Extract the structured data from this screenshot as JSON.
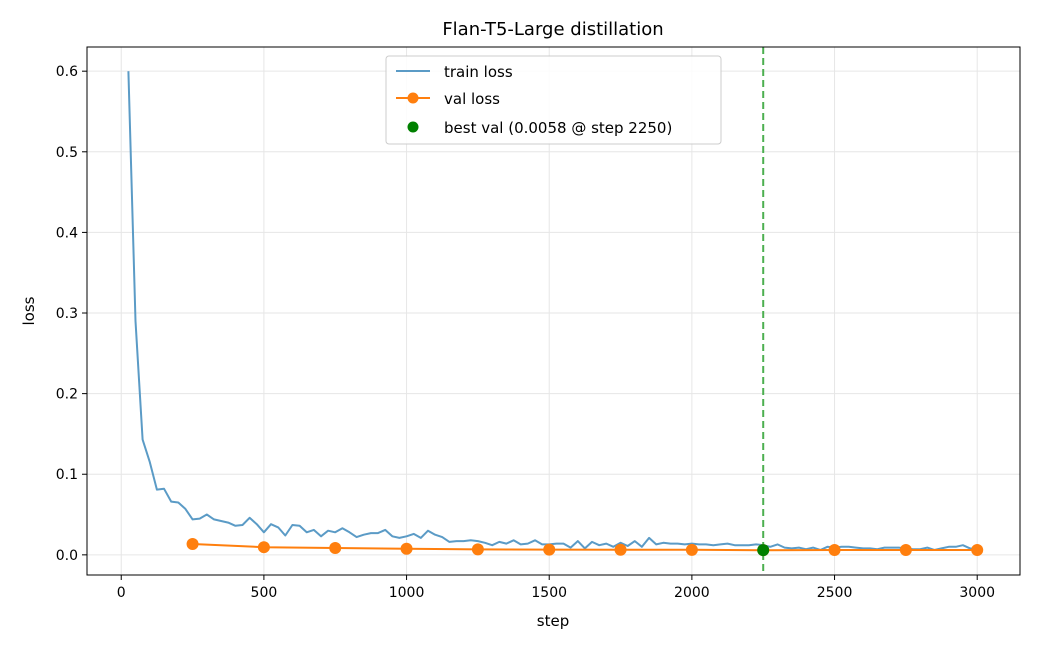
{
  "chart_data": {
    "type": "line",
    "title": "Flan-T5-Large distillation",
    "xlabel": "step",
    "ylabel": "loss",
    "xlim": [
      -120,
      3150
    ],
    "ylim": [
      -0.025,
      0.63
    ],
    "xticks": [
      0,
      500,
      1000,
      1500,
      2000,
      2500,
      3000
    ],
    "yticks": [
      0.0,
      0.1,
      0.2,
      0.3,
      0.4,
      0.5,
      0.6
    ],
    "grid": true,
    "legend_position": "top-center",
    "series": [
      {
        "name": "train loss",
        "color": "#5b9bc6",
        "marker": "none",
        "points": [
          [
            25,
            0.6
          ],
          [
            50,
            0.29
          ],
          [
            75,
            0.143
          ],
          [
            100,
            0.115
          ],
          [
            125,
            0.081
          ],
          [
            150,
            0.082
          ],
          [
            175,
            0.066
          ],
          [
            200,
            0.065
          ],
          [
            225,
            0.057
          ],
          [
            250,
            0.044
          ],
          [
            275,
            0.045
          ],
          [
            300,
            0.05
          ],
          [
            325,
            0.044
          ],
          [
            350,
            0.042
          ],
          [
            375,
            0.04
          ],
          [
            400,
            0.036
          ],
          [
            425,
            0.037
          ],
          [
            450,
            0.046
          ],
          [
            475,
            0.038
          ],
          [
            500,
            0.028
          ],
          [
            525,
            0.038
          ],
          [
            550,
            0.034
          ],
          [
            575,
            0.024
          ],
          [
            600,
            0.037
          ],
          [
            625,
            0.036
          ],
          [
            650,
            0.028
          ],
          [
            675,
            0.031
          ],
          [
            700,
            0.023
          ],
          [
            725,
            0.03
          ],
          [
            750,
            0.028
          ],
          [
            775,
            0.033
          ],
          [
            800,
            0.028
          ],
          [
            825,
            0.022
          ],
          [
            850,
            0.025
          ],
          [
            875,
            0.027
          ],
          [
            900,
            0.027
          ],
          [
            925,
            0.031
          ],
          [
            950,
            0.023
          ],
          [
            975,
            0.021
          ],
          [
            1000,
            0.023
          ],
          [
            1025,
            0.026
          ],
          [
            1050,
            0.021
          ],
          [
            1075,
            0.03
          ],
          [
            1100,
            0.025
          ],
          [
            1125,
            0.022
          ],
          [
            1150,
            0.016
          ],
          [
            1175,
            0.017
          ],
          [
            1200,
            0.017
          ],
          [
            1225,
            0.018
          ],
          [
            1250,
            0.017
          ],
          [
            1275,
            0.015
          ],
          [
            1300,
            0.012
          ],
          [
            1325,
            0.016
          ],
          [
            1350,
            0.014
          ],
          [
            1375,
            0.018
          ],
          [
            1400,
            0.013
          ],
          [
            1425,
            0.014
          ],
          [
            1450,
            0.018
          ],
          [
            1475,
            0.013
          ],
          [
            1500,
            0.013
          ],
          [
            1525,
            0.014
          ],
          [
            1550,
            0.014
          ],
          [
            1575,
            0.009
          ],
          [
            1600,
            0.017
          ],
          [
            1625,
            0.008
          ],
          [
            1650,
            0.016
          ],
          [
            1675,
            0.012
          ],
          [
            1700,
            0.014
          ],
          [
            1725,
            0.01
          ],
          [
            1750,
            0.015
          ],
          [
            1775,
            0.011
          ],
          [
            1800,
            0.017
          ],
          [
            1825,
            0.01
          ],
          [
            1850,
            0.021
          ],
          [
            1875,
            0.013
          ],
          [
            1900,
            0.015
          ],
          [
            1925,
            0.014
          ],
          [
            1950,
            0.014
          ],
          [
            1975,
            0.013
          ],
          [
            2000,
            0.014
          ],
          [
            2025,
            0.013
          ],
          [
            2050,
            0.013
          ],
          [
            2075,
            0.012
          ],
          [
            2100,
            0.013
          ],
          [
            2125,
            0.014
          ],
          [
            2150,
            0.012
          ],
          [
            2175,
            0.012
          ],
          [
            2200,
            0.012
          ],
          [
            2225,
            0.013
          ],
          [
            2250,
            0.012
          ],
          [
            2275,
            0.01
          ],
          [
            2300,
            0.013
          ],
          [
            2325,
            0.009
          ],
          [
            2350,
            0.008
          ],
          [
            2375,
            0.009
          ],
          [
            2400,
            0.007
          ],
          [
            2425,
            0.009
          ],
          [
            2450,
            0.006
          ],
          [
            2475,
            0.01
          ],
          [
            2500,
            0.009
          ],
          [
            2525,
            0.01
          ],
          [
            2550,
            0.01
          ],
          [
            2575,
            0.009
          ],
          [
            2600,
            0.008
          ],
          [
            2625,
            0.008
          ],
          [
            2650,
            0.007
          ],
          [
            2675,
            0.009
          ],
          [
            2700,
            0.009
          ],
          [
            2725,
            0.009
          ],
          [
            2750,
            0.008
          ],
          [
            2775,
            0.007
          ],
          [
            2800,
            0.007
          ],
          [
            2825,
            0.009
          ],
          [
            2850,
            0.006
          ],
          [
            2875,
            0.008
          ],
          [
            2900,
            0.01
          ],
          [
            2925,
            0.01
          ],
          [
            2950,
            0.012
          ],
          [
            2975,
            0.008
          ],
          [
            3000,
            0.007
          ]
        ]
      },
      {
        "name": "val loss",
        "color": "#ff7f0e",
        "marker": "circle",
        "points": [
          [
            250,
            0.0135
          ],
          [
            500,
            0.0095
          ],
          [
            750,
            0.0085
          ],
          [
            1000,
            0.0075
          ],
          [
            1250,
            0.0068
          ],
          [
            1500,
            0.0065
          ],
          [
            1750,
            0.0063
          ],
          [
            2000,
            0.0062
          ],
          [
            2250,
            0.0058
          ],
          [
            2500,
            0.006
          ],
          [
            2750,
            0.006
          ],
          [
            3000,
            0.006
          ]
        ]
      },
      {
        "name": "best val (0.0058 @ step 2250)",
        "color": "#008000",
        "marker": "circle",
        "points": [
          [
            2250,
            0.0058
          ]
        ]
      }
    ],
    "vline": {
      "x": 2250,
      "color": "#4caf50",
      "style": "dashed"
    }
  }
}
